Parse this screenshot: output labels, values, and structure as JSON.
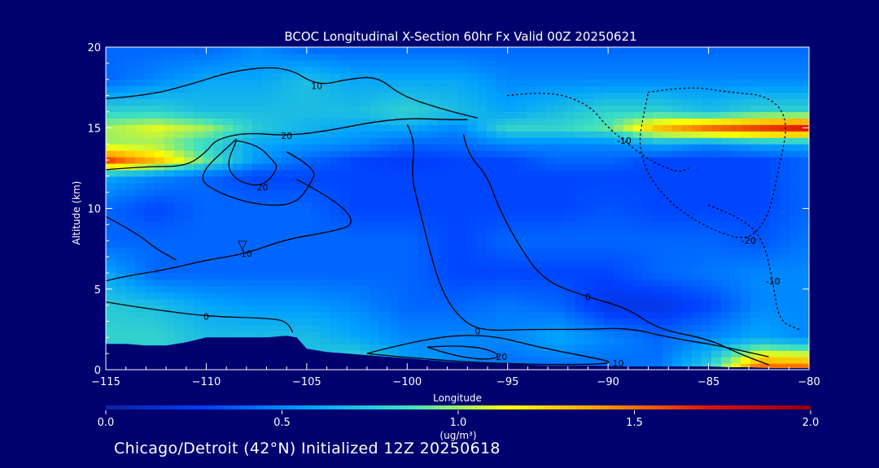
{
  "footer_text": "Chicago/Detroit (42°N) Initialized 12Z 20250618",
  "chart_data": {
    "type": "heatmap",
    "title": "BCOC Longitudinal X-Section 60hr  Fx Valid 00Z 20250621",
    "xlabel": "Longitude",
    "ylabel": "Altitude (km)",
    "xlim": [
      -115,
      -80
    ],
    "ylim": [
      0,
      20
    ],
    "x_ticks": [
      -115,
      -110,
      -105,
      -100,
      -95,
      -90,
      -85,
      -80
    ],
    "x_tick_labels": [
      "−115",
      "−110",
      "−105",
      "−100",
      "−95",
      "−90",
      "−85",
      "−80"
    ],
    "y_ticks": [
      0,
      5,
      10,
      15,
      20
    ],
    "y_tick_labels": [
      "0",
      "5",
      "10",
      "15",
      "20"
    ],
    "colorbar": {
      "min": 0.0,
      "max": 2.0,
      "ticks": [
        0.0,
        0.5,
        1.0,
        1.5,
        2.0
      ],
      "tick_labels": [
        "0.0",
        "0.5",
        "1.0",
        "1.5",
        "2.0"
      ],
      "label_line1": "1.0",
      "label_line2": "(ug/m³)",
      "colors": [
        "#1020a0",
        "#0040ff",
        "#00a0ff",
        "#40e0c0",
        "#ffff00",
        "#ff9000",
        "#e01000",
        "#900000"
      ]
    },
    "field": {
      "lons": [
        -115,
        -112.5,
        -110,
        -107.5,
        -105,
        -102.5,
        -100,
        -97.5,
        -95,
        -92.5,
        -90,
        -87.5,
        -85,
        -82.5,
        -80
      ],
      "alts": [
        0,
        2,
        4,
        6,
        8,
        10,
        12,
        13,
        14,
        15,
        16,
        18,
        20
      ],
      "values": [
        [
          0.6,
          0.7,
          0.7,
          0.7,
          0.7,
          0.9,
          0.6,
          0.5,
          0.4,
          0.4,
          0.4,
          0.45,
          0.8,
          1.6,
          1.6
        ],
        [
          0.8,
          0.8,
          0.7,
          0.7,
          0.7,
          0.6,
          0.5,
          0.5,
          0.5,
          0.6,
          0.5,
          0.4,
          0.5,
          0.6,
          0.5
        ],
        [
          0.75,
          0.7,
          0.6,
          0.55,
          0.55,
          0.5,
          0.4,
          0.4,
          0.45,
          0.4,
          0.2,
          0.2,
          0.3,
          0.5,
          0.5
        ],
        [
          0.6,
          0.4,
          0.4,
          0.4,
          0.4,
          0.4,
          0.4,
          0.3,
          0.3,
          0.3,
          0.3,
          0.4,
          0.45,
          0.5,
          0.5
        ],
        [
          0.4,
          0.4,
          0.4,
          0.4,
          0.4,
          0.4,
          0.4,
          0.3,
          0.4,
          0.4,
          0.4,
          0.4,
          0.4,
          0.35,
          0.45
        ],
        [
          0.4,
          0.3,
          0.4,
          0.4,
          0.4,
          0.3,
          0.3,
          0.3,
          0.3,
          0.3,
          0.35,
          0.3,
          0.3,
          0.3,
          0.4
        ],
        [
          0.6,
          0.5,
          0.4,
          0.3,
          0.3,
          0.3,
          0.3,
          0.3,
          0.3,
          0.3,
          0.3,
          0.3,
          0.3,
          0.3,
          0.4
        ],
        [
          1.6,
          1.3,
          0.9,
          0.55,
          0.4,
          0.3,
          0.25,
          0.3,
          0.3,
          0.4,
          0.4,
          0.3,
          0.3,
          0.3,
          0.4
        ],
        [
          1.0,
          1.0,
          0.8,
          0.6,
          0.55,
          0.5,
          0.4,
          0.4,
          0.5,
          0.5,
          0.5,
          0.6,
          0.5,
          0.6,
          0.6
        ],
        [
          1.0,
          1.1,
          1.0,
          0.75,
          0.65,
          0.6,
          0.6,
          0.5,
          0.8,
          0.8,
          0.9,
          1.3,
          1.5,
          1.6,
          1.7
        ],
        [
          0.8,
          0.8,
          0.7,
          0.7,
          0.7,
          0.7,
          0.8,
          0.7,
          0.6,
          0.7,
          0.8,
          0.8,
          0.7,
          0.8,
          0.8
        ],
        [
          0.4,
          0.5,
          0.6,
          0.6,
          0.7,
          0.6,
          0.6,
          0.6,
          0.5,
          0.5,
          0.5,
          0.5,
          0.5,
          0.5,
          0.5
        ],
        [
          0.4,
          0.4,
          0.4,
          0.5,
          0.4,
          0.4,
          0.4,
          0.4,
          0.4,
          0.4,
          0.4,
          0.4,
          0.4,
          0.4,
          0.4
        ]
      ]
    },
    "terrain": {
      "lons": [
        -115,
        -114,
        -113,
        -112,
        -111,
        -110,
        -109,
        -108,
        -107,
        -106,
        -105.5,
        -105,
        -104,
        -103,
        -102,
        -101,
        -100,
        -99,
        -98,
        -97,
        -96,
        -95,
        -94,
        -93,
        -92,
        -91,
        -90,
        -89,
        -88,
        -87,
        -86,
        -85,
        -84,
        -83,
        -82,
        -81,
        -80
      ],
      "alts": [
        1.6,
        1.6,
        1.5,
        1.5,
        1.7,
        2.0,
        2.0,
        2.0,
        2.0,
        2.1,
        2.0,
        1.3,
        1.1,
        1.0,
        0.9,
        0.8,
        0.7,
        0.6,
        0.5,
        0.45,
        0.4,
        0.35,
        0.3,
        0.25,
        0.25,
        0.25,
        0.22,
        0.2,
        0.2,
        0.2,
        0.2,
        0.2,
        0.15,
        0.15,
        0.1,
        0.1,
        0.1
      ]
    },
    "contours": [
      {
        "label": "20",
        "style": "solid",
        "points": [
          [
            -115,
            12.4
          ],
          [
            -113,
            12.6
          ],
          [
            -111,
            12.6
          ],
          [
            -110,
            13.5
          ],
          [
            -109.5,
            14.3
          ],
          [
            -108,
            14.7
          ],
          [
            -106,
            14.5
          ],
          [
            -104,
            14.8
          ],
          [
            -102,
            15.3
          ],
          [
            -100,
            15.6
          ],
          [
            -98,
            15.5
          ],
          [
            -97,
            15.5
          ]
        ]
      },
      {
        "label": "10",
        "style": "solid",
        "points": [
          [
            -115,
            16.8
          ],
          [
            -113,
            17.0
          ],
          [
            -111,
            17.6
          ],
          [
            -108.5,
            18.6
          ],
          [
            -106,
            18.8
          ],
          [
            -104.5,
            17.6
          ],
          [
            -103,
            18.0
          ],
          [
            -101.5,
            18.2
          ],
          [
            -100.3,
            17.0
          ],
          [
            -98.4,
            16.2
          ],
          [
            -96.5,
            15.6
          ]
        ]
      },
      {
        "label": "20",
        "style": "solid",
        "points": [
          [
            -108.5,
            14.2
          ],
          [
            -107.5,
            14.0
          ],
          [
            -106.7,
            13.0
          ],
          [
            -106.4,
            12.5
          ],
          [
            -107.2,
            11.3
          ],
          [
            -108.5,
            11.7
          ],
          [
            -109,
            12.7
          ],
          [
            -108.5,
            14.2
          ]
        ]
      },
      {
        "label": "",
        "style": "solid",
        "points": [
          [
            -106,
            13.5
          ],
          [
            -104.5,
            12.5
          ],
          [
            -104.8,
            11.5
          ],
          [
            -105.6,
            10.2
          ],
          [
            -107.5,
            10.2
          ],
          [
            -109.5,
            11.0
          ],
          [
            -110.5,
            12.0
          ],
          [
            -108.5,
            14.3
          ]
        ]
      },
      {
        "label": "0",
        "style": "solid",
        "points": [
          [
            -100,
            15.2
          ],
          [
            -99.6,
            14.3
          ],
          [
            -99.8,
            12.0
          ],
          [
            -99.4,
            10.0
          ],
          [
            -98.8,
            7.0
          ],
          [
            -98.3,
            5.0
          ],
          [
            -97.6,
            3.5
          ],
          [
            -96.5,
            2.4
          ],
          [
            -94.0,
            2.5
          ],
          [
            -91.0,
            2.5
          ],
          [
            -89.0,
            2.6
          ],
          [
            -87.0,
            2.0
          ],
          [
            -84.5,
            1.5
          ],
          [
            -82.0,
            0.8
          ]
        ]
      },
      {
        "label": "0",
        "style": "solid",
        "points": [
          [
            -97.2,
            14.6
          ],
          [
            -97.0,
            13.4
          ],
          [
            -96.0,
            12.0
          ],
          [
            -95.5,
            10.2
          ],
          [
            -94.5,
            7.8
          ],
          [
            -93.2,
            5.5
          ],
          [
            -91.0,
            4.5
          ],
          [
            -89.0,
            3.8
          ],
          [
            -87.5,
            2.5
          ],
          [
            -85.0,
            1.9
          ],
          [
            -83.5,
            1.0
          ],
          [
            -82.0,
            0.3
          ]
        ]
      },
      {
        "label": "10",
        "style": "solid",
        "points": [
          [
            -105.5,
            11.8
          ],
          [
            -103.5,
            10.5
          ],
          [
            -102.5,
            9.0
          ],
          [
            -104.0,
            8.5
          ],
          [
            -106.0,
            8.1
          ],
          [
            -108.0,
            7.2
          ],
          [
            -110.0,
            6.8
          ],
          [
            -112.0,
            6.2
          ],
          [
            -114.0,
            5.8
          ],
          [
            -115.0,
            5.5
          ]
        ]
      },
      {
        "label": "",
        "style": "solid",
        "points": [
          [
            -115,
            9.5
          ],
          [
            -113.5,
            8.5
          ],
          [
            -112.5,
            7.5
          ],
          [
            -111.5,
            6.8
          ]
        ]
      },
      {
        "label": "0",
        "style": "solid",
        "points": [
          [
            -105.7,
            2.3
          ],
          [
            -105.9,
            3.0
          ],
          [
            -107.0,
            3.2
          ],
          [
            -110.0,
            3.3
          ],
          [
            -113.0,
            3.8
          ],
          [
            -115.0,
            4.2
          ]
        ]
      },
      {
        "label": "20",
        "style": "solid",
        "points": [
          [
            -99.0,
            1.4
          ],
          [
            -97.8,
            0.9
          ],
          [
            -96.2,
            0.6
          ],
          [
            -95.3,
            0.8
          ],
          [
            -96.0,
            1.3
          ],
          [
            -97.5,
            1.5
          ],
          [
            -99.0,
            1.4
          ]
        ]
      },
      {
        "label": "10",
        "style": "solid",
        "points": [
          [
            -102.0,
            1.0
          ],
          [
            -99.0,
            2.0
          ],
          [
            -96.0,
            2.2
          ],
          [
            -93.5,
            1.4
          ],
          [
            -91.0,
            0.8
          ],
          [
            -89.5,
            0.4
          ],
          [
            -92.0,
            0.3
          ],
          [
            -96.0,
            0.4
          ],
          [
            -99.5,
            0.7
          ],
          [
            -102.0,
            1.0
          ]
        ]
      },
      {
        "label": "-10",
        "style": "dotted",
        "points": [
          [
            -95,
            17.0
          ],
          [
            -93,
            17.3
          ],
          [
            -91,
            16.5
          ],
          [
            -90,
            15.0
          ],
          [
            -89.2,
            14.2
          ],
          [
            -88.0,
            13.0
          ],
          [
            -86.5,
            12.2
          ],
          [
            -86.0,
            12.5
          ]
        ]
      },
      {
        "label": "-20",
        "style": "dotted",
        "points": [
          [
            -88.0,
            17.2
          ],
          [
            -86.0,
            17.6
          ],
          [
            -84.0,
            17.2
          ],
          [
            -82.0,
            17.0
          ],
          [
            -81.0,
            15.5
          ],
          [
            -81.5,
            12.5
          ],
          [
            -82.0,
            9.5
          ],
          [
            -83.0,
            8.0
          ],
          [
            -84.5,
            8.5
          ],
          [
            -86.0,
            9.5
          ],
          [
            -87.0,
            10.5
          ],
          [
            -88.0,
            12.0
          ],
          [
            -88.5,
            14.0
          ],
          [
            -88.2,
            16.0
          ],
          [
            -88.0,
            17.2
          ]
        ]
      },
      {
        "label": "-10",
        "style": "dotted",
        "points": [
          [
            -85.0,
            10.2
          ],
          [
            -83.5,
            9.5
          ],
          [
            -82.3,
            8.2
          ],
          [
            -81.8,
            5.5
          ],
          [
            -81.5,
            3.0
          ],
          [
            -80.5,
            2.5
          ]
        ]
      }
    ],
    "marker": {
      "symbol": "▽",
      "lon": -108.2,
      "alt": 7.8
    }
  }
}
